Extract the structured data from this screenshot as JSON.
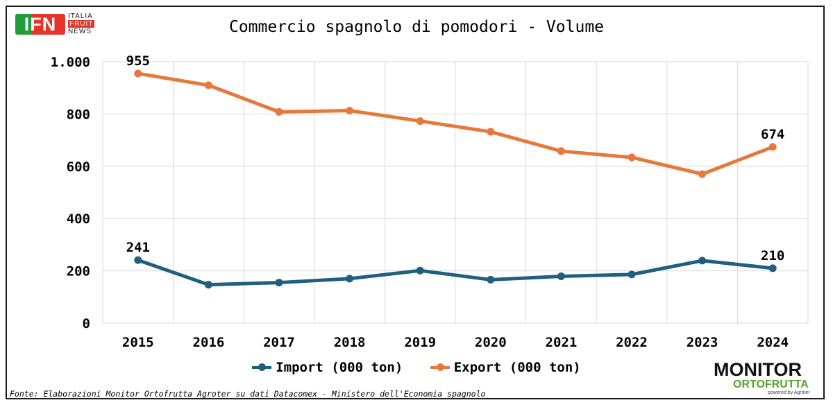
{
  "title": "Commercio spagnolo di pomodori - Volume",
  "logo_top": {
    "ifn": "IFN",
    "line1": "ITALIA",
    "line2": "FRUIT",
    "line3": "NEWS"
  },
  "logo_bottom": {
    "main": "MONITOR",
    "sub": "ORTOFRUTTA",
    "powered": "powered by Agroter"
  },
  "source": "Fonte: Elaborazioni Monitor Ortofrutta Agroter su dati Datacomex - Ministero dell'Economia spagnolo",
  "colors": {
    "import": "#1f5f7f",
    "export": "#e8783a",
    "grid": "#d9d9d9"
  },
  "chart_data": {
    "type": "line",
    "title": "Commercio spagnolo di pomodori - Volume",
    "categories": [
      "2015",
      "2016",
      "2017",
      "2018",
      "2019",
      "2020",
      "2021",
      "2022",
      "2023",
      "2024"
    ],
    "ylim": [
      0,
      1000
    ],
    "yticks": [
      0,
      200,
      400,
      600,
      800,
      1000
    ],
    "ytick_labels": [
      "0",
      "200",
      "400",
      "600",
      "800",
      "1.000"
    ],
    "grid": true,
    "legend_position": "bottom",
    "series": [
      {
        "name": "Import (000 ton)",
        "key": "import",
        "values": [
          241,
          147,
          155,
          170,
          201,
          166,
          179,
          186,
          239,
          210
        ],
        "labels": {
          "0": "241",
          "9": "210"
        }
      },
      {
        "name": "Export (000 ton)",
        "key": "export",
        "values": [
          955,
          910,
          808,
          813,
          773,
          732,
          658,
          634,
          570,
          674
        ],
        "labels": {
          "0": "955",
          "9": "674"
        }
      }
    ]
  }
}
